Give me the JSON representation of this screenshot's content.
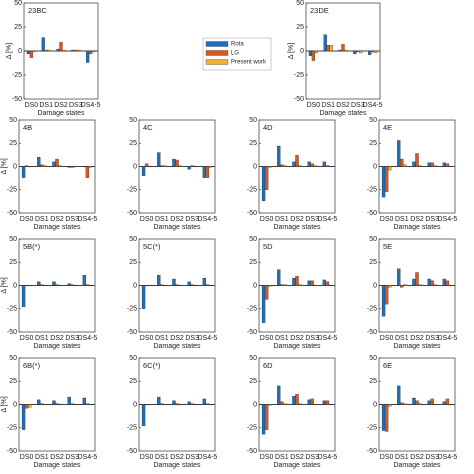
{
  "legend": [
    {
      "name": "Rota",
      "color": "#1f6fb9"
    },
    {
      "name": "LG",
      "color": "#d9581f"
    },
    {
      "name": "Present work",
      "color": "#f0b233"
    }
  ],
  "chart_data": [
    {
      "type": "bar",
      "title": "23BC",
      "xlabel": "Damage states",
      "ylabel": "Δ [%]",
      "categories": [
        "DS0",
        "DS1",
        "DS2",
        "DS3",
        "DS4-5"
      ],
      "ylim": [
        -50,
        50
      ],
      "yticks": [
        -50,
        -25,
        0,
        25,
        50
      ],
      "series": [
        {
          "values": [
            -3,
            14,
            2,
            1,
            -12
          ]
        },
        {
          "values": [
            -7,
            1,
            9,
            1,
            -3
          ]
        },
        {
          "values": [
            -1,
            1,
            1,
            1,
            -1
          ]
        }
      ]
    },
    {
      "type": "bar",
      "title": "23DE",
      "xlabel": "Damage states",
      "ylabel": "Δ [%]",
      "categories": [
        "DS0",
        "DS1",
        "DS2",
        "DS3",
        "DS4-5"
      ],
      "ylim": [
        -50,
        50
      ],
      "yticks": [
        -50,
        -25,
        0,
        25,
        50
      ],
      "series": [
        {
          "values": [
            -5,
            17,
            1,
            -3,
            -4
          ]
        },
        {
          "values": [
            -10,
            6,
            7,
            -1,
            -1
          ]
        },
        {
          "values": [
            -2,
            6,
            1,
            -2,
            -2
          ]
        }
      ]
    },
    {
      "type": "bar",
      "title": "4B",
      "xlabel": "Damage states",
      "ylabel": "Δ [%]",
      "categories": [
        "DS0",
        "DS1",
        "DS2",
        "DS3",
        "DS4-5"
      ],
      "ylim": [
        -50,
        50
      ],
      "yticks": [
        -50,
        -25,
        0,
        25,
        50
      ],
      "series": [
        {
          "values": [
            -12,
            10,
            5,
            -1,
            0
          ]
        },
        {
          "values": [
            1,
            2,
            8,
            -1,
            -12
          ]
        },
        {
          "values": [
            0,
            1,
            1,
            0,
            -1
          ]
        }
      ]
    },
    {
      "type": "bar",
      "title": "4C",
      "xlabel": "Damage states",
      "categories": [
        "DS0",
        "DS1",
        "DS2",
        "DS3",
        "DS4-5"
      ],
      "ylim": [
        -50,
        50
      ],
      "yticks": [
        -50,
        -25,
        0,
        25,
        50
      ],
      "series": [
        {
          "values": [
            -10,
            15,
            8,
            -3,
            -12
          ]
        },
        {
          "values": [
            3,
            1,
            7,
            1,
            -12
          ]
        },
        {
          "values": [
            0,
            1,
            1,
            0,
            -1
          ]
        }
      ]
    },
    {
      "type": "bar",
      "title": "4D",
      "xlabel": "Damage states",
      "categories": [
        "DS0",
        "DS1",
        "DS2",
        "DS3",
        "DS4-5"
      ],
      "ylim": [
        -50,
        50
      ],
      "yticks": [
        -50,
        -25,
        0,
        25,
        50
      ],
      "series": [
        {
          "values": [
            -37,
            22,
            5,
            5,
            5
          ]
        },
        {
          "values": [
            -25,
            2,
            12,
            3,
            1
          ]
        },
        {
          "values": [
            -1,
            1,
            1,
            1,
            0
          ]
        }
      ]
    },
    {
      "type": "bar",
      "title": "4E",
      "xlabel": "Damage states",
      "categories": [
        "DS0",
        "DS1",
        "DS2",
        "DS3",
        "DS4-5"
      ],
      "ylim": [
        -50,
        50
      ],
      "yticks": [
        -50,
        -25,
        0,
        25,
        50
      ],
      "series": [
        {
          "values": [
            -33,
            28,
            5,
            4,
            4
          ]
        },
        {
          "values": [
            -27,
            8,
            14,
            4,
            3
          ]
        },
        {
          "values": [
            -4,
            2,
            1,
            1,
            0
          ]
        }
      ]
    },
    {
      "type": "bar",
      "title": "5B(*)",
      "xlabel": "Damage states",
      "ylabel": "Δ [%]",
      "categories": [
        "DS0",
        "DS1",
        "DS2",
        "DS3",
        "DS4-5"
      ],
      "ylim": [
        -50,
        50
      ],
      "yticks": [
        -50,
        -25,
        0,
        25,
        50
      ],
      "series": [
        {
          "values": [
            -23,
            4,
            4,
            2,
            11
          ]
        },
        {
          "values": [
            0,
            1,
            1,
            1,
            1
          ]
        },
        {
          "values": [
            0,
            0,
            0,
            0,
            0
          ]
        }
      ]
    },
    {
      "type": "bar",
      "title": "5C(*)",
      "xlabel": "Damage states",
      "categories": [
        "DS0",
        "DS1",
        "DS2",
        "DS3",
        "DS4-5"
      ],
      "ylim": [
        -50,
        50
      ],
      "yticks": [
        -50,
        -25,
        0,
        25,
        50
      ],
      "series": [
        {
          "values": [
            -25,
            11,
            7,
            4,
            8
          ]
        },
        {
          "values": [
            0,
            1,
            1,
            1,
            1
          ]
        },
        {
          "values": [
            0,
            0,
            0,
            0,
            0
          ]
        }
      ]
    },
    {
      "type": "bar",
      "title": "5D",
      "xlabel": "Damage states",
      "categories": [
        "DS0",
        "DS1",
        "DS2",
        "DS3",
        "DS4-5"
      ],
      "ylim": [
        -50,
        50
      ],
      "yticks": [
        -50,
        -25,
        0,
        25,
        50
      ],
      "series": [
        {
          "values": [
            -40,
            17,
            8,
            5,
            6
          ]
        },
        {
          "values": [
            -15,
            1,
            10,
            5,
            4
          ]
        },
        {
          "values": [
            -1,
            1,
            1,
            0,
            0
          ]
        }
      ]
    },
    {
      "type": "bar",
      "title": "5E",
      "xlabel": "Damage states",
      "categories": [
        "DS0",
        "DS1",
        "DS2",
        "DS3",
        "DS4-5"
      ],
      "ylim": [
        -50,
        50
      ],
      "yticks": [
        -50,
        -25,
        0,
        25,
        50
      ],
      "series": [
        {
          "values": [
            -33,
            18,
            7,
            7,
            7
          ]
        },
        {
          "values": [
            -20,
            -2,
            14,
            5,
            5
          ]
        },
        {
          "values": [
            -2,
            1,
            1,
            1,
            0
          ]
        }
      ]
    },
    {
      "type": "bar",
      "title": "6B(*)",
      "xlabel": "Damage states",
      "ylabel": "Δ [%]",
      "categories": [
        "DS0",
        "DS1",
        "DS2",
        "DS3",
        "DS4-5"
      ],
      "ylim": [
        -50,
        50
      ],
      "yticks": [
        -50,
        -25,
        0,
        25,
        50
      ],
      "series": [
        {
          "values": [
            -27,
            5,
            4,
            8,
            7
          ]
        },
        {
          "values": [
            -4,
            1,
            1,
            1,
            1
          ]
        },
        {
          "values": [
            -3,
            0,
            0,
            0,
            0
          ]
        }
      ]
    },
    {
      "type": "bar",
      "title": "6C(*)",
      "xlabel": "Damage states",
      "categories": [
        "DS0",
        "DS1",
        "DS2",
        "DS3",
        "DS4-5"
      ],
      "ylim": [
        -50,
        50
      ],
      "yticks": [
        -50,
        -25,
        0,
        25,
        50
      ],
      "series": [
        {
          "values": [
            -23,
            8,
            4,
            3,
            6
          ]
        },
        {
          "values": [
            0,
            1,
            1,
            1,
            1
          ]
        },
        {
          "values": [
            0,
            0,
            0,
            0,
            0
          ]
        }
      ]
    },
    {
      "type": "bar",
      "title": "6D",
      "xlabel": "Damage states",
      "categories": [
        "DS0",
        "DS1",
        "DS2",
        "DS3",
        "DS4-5"
      ],
      "ylim": [
        -50,
        50
      ],
      "yticks": [
        -50,
        -25,
        0,
        25,
        50
      ],
      "series": [
        {
          "values": [
            -32,
            20,
            9,
            5,
            4
          ]
        },
        {
          "values": [
            -27,
            3,
            11,
            6,
            4
          ]
        },
        {
          "values": [
            -1,
            1,
            1,
            0,
            0
          ]
        }
      ]
    },
    {
      "type": "bar",
      "title": "6E",
      "xlabel": "Damage states",
      "categories": [
        "DS0",
        "DS1",
        "DS2",
        "DS3",
        "DS4-5"
      ],
      "ylim": [
        -50,
        50
      ],
      "yticks": [
        -50,
        -25,
        0,
        25,
        50
      ],
      "series": [
        {
          "values": [
            -28,
            20,
            7,
            4,
            3
          ]
        },
        {
          "values": [
            -29,
            2,
            4,
            6,
            6
          ]
        },
        {
          "values": [
            -2,
            1,
            1,
            0,
            0
          ]
        }
      ]
    }
  ]
}
